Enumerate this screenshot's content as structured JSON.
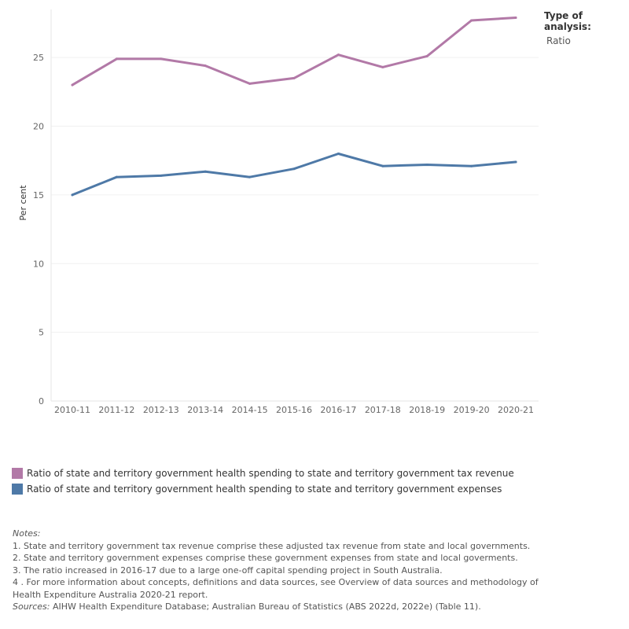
{
  "filter": {
    "title": "Type of analysis:",
    "value": "Ratio"
  },
  "chart_data": {
    "type": "line",
    "title": "",
    "xlabel": "",
    "ylabel": "Per cent",
    "ylim": [
      0,
      28.5
    ],
    "y_ticks": [
      0,
      5,
      10,
      15,
      20,
      25
    ],
    "grid": "horizontal",
    "categories": [
      "2010-11",
      "2011-12",
      "2012-13",
      "2013-14",
      "2014-15",
      "2015-16",
      "2016-17",
      "2017-18",
      "2018-19",
      "2019-20",
      "2020-21"
    ],
    "series": [
      {
        "name": "Ratio of state and territory government health spending to state and territory government tax revenue",
        "color": "#b279a7",
        "values": [
          23.0,
          24.9,
          24.9,
          24.4,
          23.1,
          23.5,
          25.2,
          24.3,
          25.1,
          27.7,
          27.9
        ]
      },
      {
        "name": "Ratio of state and territory government health spending to state and territory government expenses",
        "color": "#4e79a7",
        "values": [
          15.0,
          16.3,
          16.4,
          16.7,
          16.3,
          16.9,
          18.0,
          17.1,
          17.2,
          17.1,
          17.4
        ]
      }
    ]
  },
  "notes": {
    "heading": "Notes:",
    "items": [
      "1.  State and territory government tax revenue comprise these adjusted tax revenue from state and local governments.",
      "2.  State and territory government expenses comprise these government expenses from state and local goverments.",
      "3.  The ratio increased in 2016-17 due to a large one-off capital spending project in South Australia.",
      "4 .  For more information about concepts, definitions and data sources, see Overview of data sources and methodology of Health Expenditure Australia 2020-21 report."
    ],
    "sources_label": "Sources:",
    "sources_text": " AIHW Health Expenditure Database; Australian Bureau of Statistics (ABS 2022d, 2022e) (Table 11)."
  }
}
